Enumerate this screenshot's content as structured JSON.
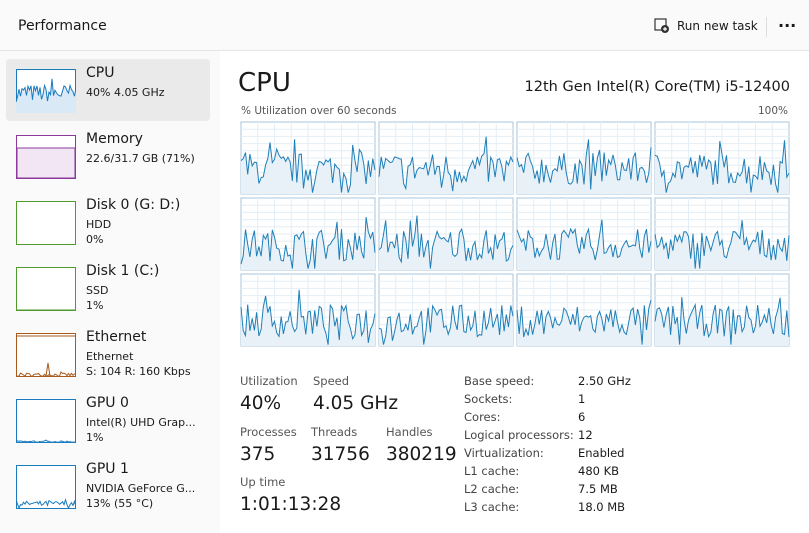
{
  "header": {
    "title": "Performance",
    "action": "Run new task",
    "more": "..."
  },
  "sidebar": [
    {
      "name": "CPU",
      "lines": [
        "40%  4.05 GHz"
      ]
    },
    {
      "name": "Memory",
      "lines": [
        "22.6/31.7 GB (71%)"
      ]
    },
    {
      "name": "Disk 0 (G: D:)",
      "lines": [
        "HDD",
        "0%"
      ]
    },
    {
      "name": "Disk 1 (C:)",
      "lines": [
        "SSD",
        "1%"
      ]
    },
    {
      "name": "Ethernet",
      "lines": [
        "Ethernet",
        "S: 104  R: 160 Kbps"
      ]
    },
    {
      "name": "GPU 0",
      "lines": [
        "Intel(R) UHD Grap...",
        "1%"
      ]
    },
    {
      "name": "GPU 1",
      "lines": [
        "NVIDIA GeForce G...",
        "13%  (55 °C)"
      ]
    }
  ],
  "main": {
    "title": "CPU",
    "model": "12th Gen Intel(R) Core(TM) i5-12400",
    "graph_label": "% Utilization over 60 seconds",
    "graph_max": "100%",
    "stats": [
      {
        "label": "Utilization",
        "value": "40%"
      },
      {
        "label": "Speed",
        "value": "4.05 GHz"
      },
      {
        "label": "Processes",
        "value": "375"
      },
      {
        "label": "Threads",
        "value": "31756"
      },
      {
        "label": "Handles",
        "value": "380219"
      },
      {
        "label": "Up time",
        "value": "1:01:13:28"
      }
    ],
    "specs": [
      {
        "label": "Base speed:",
        "value": "2.50 GHz"
      },
      {
        "label": "Sockets:",
        "value": "1"
      },
      {
        "label": "Cores:",
        "value": "6"
      },
      {
        "label": "Logical processors:",
        "value": "12"
      },
      {
        "label": "Virtualization:",
        "value": "Enabled"
      },
      {
        "label": "L1 cache:",
        "value": "480 KB"
      },
      {
        "label": "L2 cache:",
        "value": "7.5 MB"
      },
      {
        "label": "L3 cache:",
        "value": "18.0 MB"
      }
    ]
  }
}
